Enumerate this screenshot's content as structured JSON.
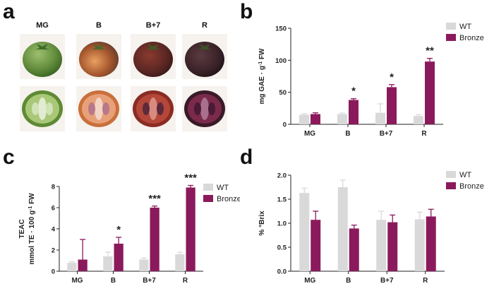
{
  "panels": {
    "a": "a",
    "b": "b",
    "c": "c",
    "d": "d"
  },
  "photo_panel": {
    "stages": [
      "MG",
      "B",
      "B+7",
      "R"
    ]
  },
  "colors": {
    "wt": "#d9d9d9",
    "bronze": "#8b1a5c",
    "axis": "#222222"
  },
  "chart_data": [
    {
      "type": "bar",
      "panel": "b",
      "categories": [
        "MG",
        "B",
        "B+7",
        "R"
      ],
      "ylabel": "mg GAE · g-1 FW",
      "ylim": [
        0,
        150
      ],
      "yticks": [
        "0",
        "50",
        "100",
        "150"
      ],
      "series": [
        {
          "name": "WT",
          "values": [
            15,
            16,
            18,
            13
          ],
          "err": [
            1.5,
            1.5,
            14,
            2
          ]
        },
        {
          "name": "Bronze",
          "values": [
            16,
            38,
            58,
            98
          ],
          "err": [
            2,
            2,
            4,
            5
          ]
        }
      ],
      "annotations": [
        "",
        "*",
        "*",
        "**"
      ],
      "legend": [
        "WT",
        "Bronze"
      ],
      "legend_position": "top-right"
    },
    {
      "type": "bar",
      "panel": "c",
      "categories": [
        "MG",
        "B",
        "B+7",
        "R"
      ],
      "ylabel": "TEAC",
      "ylabel2": "mmol TE · 100 g-1 FW",
      "ylim": [
        0,
        8
      ],
      "yticks": [
        "0",
        "2",
        "4",
        "6",
        "8"
      ],
      "series": [
        {
          "name": "WT",
          "values": [
            0.8,
            1.4,
            1.1,
            1.6
          ],
          "err": [
            0.1,
            0.4,
            0.15,
            0.2
          ]
        },
        {
          "name": "Bronze",
          "values": [
            1.1,
            2.6,
            6.0,
            7.9
          ],
          "err": [
            1.9,
            0.6,
            0.15,
            0.2
          ]
        }
      ],
      "annotations": [
        "",
        "*",
        "***",
        "***"
      ],
      "legend": [
        "WT",
        "Bronze"
      ],
      "legend_position": "top-right"
    },
    {
      "type": "bar",
      "panel": "d",
      "categories": [
        "MG",
        "B",
        "B+7",
        "R"
      ],
      "ylabel": "% °Brix",
      "ylim": [
        0,
        2.0
      ],
      "yticks": [
        "0.0",
        "0.5",
        "1.0",
        "1.5",
        "2.0"
      ],
      "series": [
        {
          "name": "WT",
          "values": [
            1.63,
            1.75,
            1.07,
            1.08
          ],
          "err": [
            0.1,
            0.15,
            0.18,
            0.15
          ]
        },
        {
          "name": "Bronze",
          "values": [
            1.07,
            0.89,
            1.02,
            1.14
          ],
          "err": [
            0.18,
            0.07,
            0.15,
            0.15
          ]
        }
      ],
      "annotations": [
        "",
        "",
        "",
        ""
      ],
      "legend": [
        "WT",
        "Bronze"
      ],
      "legend_position": "top-right"
    }
  ]
}
